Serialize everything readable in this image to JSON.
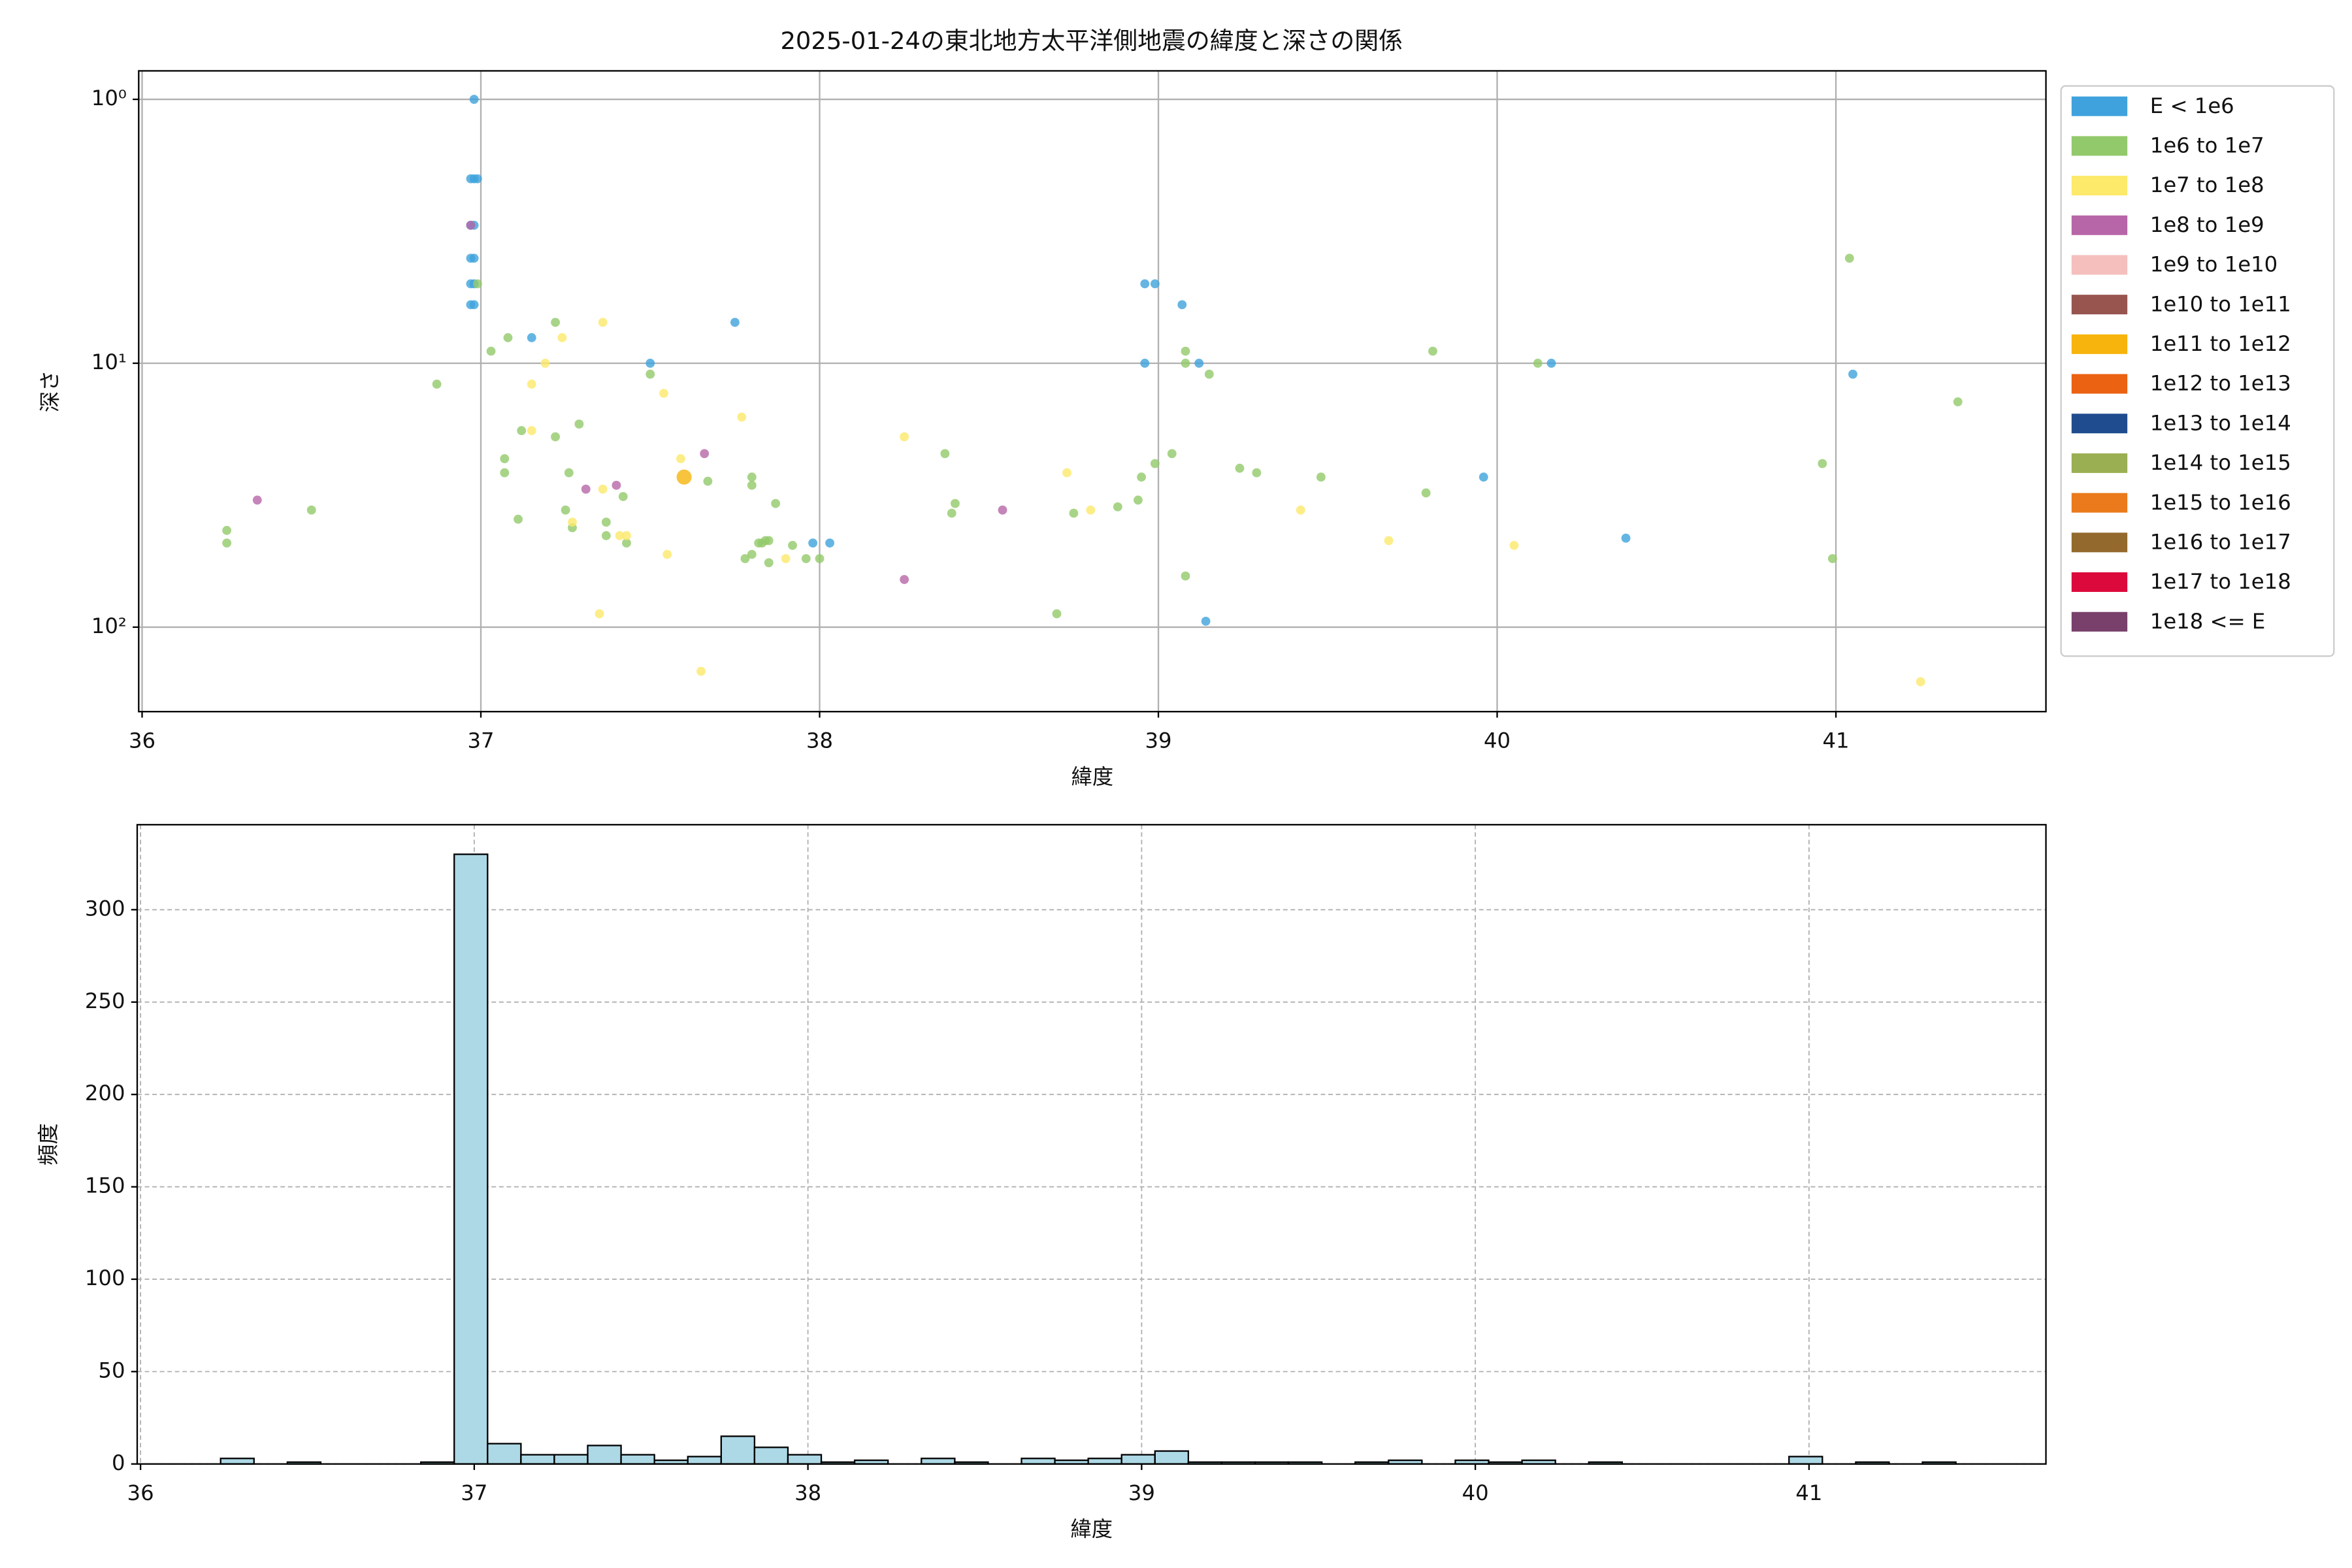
{
  "chart_data": [
    {
      "type": "scatter",
      "title": "2025-01-24の東北地方太平洋側地震の緯度と深さの関係",
      "xlabel": "緯度",
      "ylabel": "深さ",
      "xlim": [
        35.99,
        41.62
      ],
      "xticks": [
        36,
        37,
        38,
        39,
        40,
        41
      ],
      "ylim": [
        209,
        0.78
      ],
      "yscale": "log",
      "yticks": [
        {
          "value": 1,
          "label": "10⁰"
        },
        {
          "value": 10,
          "label": "10¹"
        },
        {
          "value": 100,
          "label": "10²"
        }
      ],
      "grid": true,
      "legend": "outside-upper-right",
      "series": [
        {
          "name": "E < 1e6",
          "color": "#3fa2dc",
          "size": 3,
          "x": [
            36.98,
            36.97,
            36.98,
            36.99,
            36.97,
            36.98,
            36.97,
            36.98,
            36.97,
            36.98,
            36.97,
            36.98,
            37.15,
            37.5,
            37.75,
            38.96,
            38.99,
            39.07,
            38.96,
            39.12,
            39.96,
            40.16,
            41.05,
            40.38,
            37.98,
            38.03,
            39.14
          ],
          "y": [
            1,
            2,
            2,
            2,
            3,
            3,
            4,
            4,
            5,
            5,
            6,
            6,
            8,
            10,
            7,
            5,
            5,
            6,
            10,
            10,
            27,
            10,
            11,
            46,
            48,
            48,
            95
          ]
        },
        {
          "name": "1e6 to 1e7",
          "color": "#92c96a",
          "size": 3,
          "x": [
            36.25,
            36.25,
            36.5,
            36.87,
            36.99,
            37.03,
            37.08,
            37.22,
            37.07,
            37.07,
            37.12,
            37.22,
            37.29,
            37.26,
            37.11,
            37.25,
            37.27,
            37.42,
            37.37,
            37.37,
            37.43,
            37.5,
            37.67,
            37.8,
            37.8,
            37.87,
            37.78,
            37.8,
            37.83,
            37.84,
            37.85,
            37.82,
            37.85,
            37.92,
            37.96,
            38,
            38.37,
            38.4,
            38.39,
            38.7,
            38.75,
            38.88,
            38.94,
            38.95,
            38.99,
            39.04,
            39.08,
            39.08,
            39.15,
            39.08,
            39.24,
            39.29,
            39.48,
            39.79,
            39.81,
            40.12,
            40.96,
            40.99,
            41.04,
            41.36
          ],
          "y": [
            43,
            48,
            36,
            12,
            5,
            9,
            8,
            7,
            23,
            26,
            18,
            19,
            17,
            26,
            39,
            36,
            42,
            32,
            40,
            45,
            48,
            11,
            28,
            27,
            29,
            34,
            55,
            53,
            48,
            47,
            47,
            48,
            57,
            49,
            55,
            55,
            22,
            34,
            37,
            89,
            37,
            35,
            33,
            27,
            24,
            22,
            9,
            10,
            11,
            64,
            25,
            26,
            27,
            31,
            9,
            10,
            24,
            55,
            4,
            14
          ]
        },
        {
          "name": "1e7 to 1e8",
          "color": "#fde96a",
          "size": 3,
          "x": [
            37.15,
            37.19,
            37.24,
            37.36,
            37.15,
            37.36,
            37.41,
            37.43,
            37.27,
            37.59,
            37.54,
            37.55,
            37.77,
            37.35,
            37.65,
            37.9,
            38.25,
            38.73,
            38.8,
            39.42,
            39.68,
            40.05,
            41.25
          ],
          "y": [
            12,
            10,
            8,
            7,
            18,
            30,
            45,
            45,
            40,
            23,
            13,
            53,
            16,
            89,
            147,
            55,
            19,
            26,
            36,
            36,
            47,
            49,
            161
          ]
        },
        {
          "name": "1e8 to 1e9",
          "color": "#b766a8",
          "size": 3,
          "x": [
            36.34,
            36.97,
            37.31,
            37.4,
            37.66,
            38.54,
            38.25
          ],
          "y": [
            33,
            3,
            30,
            29,
            22,
            36,
            66
          ]
        },
        {
          "name": "1e9 to 1e10",
          "color": "#f4bfbc",
          "size": 3,
          "x": [],
          "y": []
        },
        {
          "name": "1e10 to 1e11",
          "color": "#98544f",
          "size": 3,
          "x": [],
          "y": []
        },
        {
          "name": "1e11 to 1e12",
          "color": "#f6b40c",
          "size": 5,
          "x": [
            37.6
          ],
          "y": [
            27
          ]
        },
        {
          "name": "1e12 to 1e13",
          "color": "#ea6212",
          "size": 3,
          "x": [],
          "y": []
        },
        {
          "name": "1e13 to 1e14",
          "color": "#1f4c8f",
          "size": 3,
          "x": [],
          "y": []
        },
        {
          "name": "1e14 to 1e15",
          "color": "#9aaf52",
          "size": 3,
          "x": [],
          "y": []
        },
        {
          "name": "1e15 to 1e16",
          "color": "#ea7a1c",
          "size": 3,
          "x": [],
          "y": []
        },
        {
          "name": "1e16 to 1e17",
          "color": "#94692d",
          "size": 3,
          "x": [],
          "y": []
        },
        {
          "name": "1e17 to 1e18",
          "color": "#dc0a3c",
          "size": 3,
          "x": [],
          "y": []
        },
        {
          "name": "1e18 <= E",
          "color": "#78406b",
          "size": 3,
          "x": [],
          "y": []
        }
      ]
    },
    {
      "type": "histogram",
      "xlabel": "緯度",
      "ylabel": "頻度",
      "color": "#add8e6",
      "xlim": [
        35.99,
        41.71
      ],
      "xticks": [
        36,
        37,
        38,
        39,
        40,
        41
      ],
      "ylim": [
        0,
        346
      ],
      "yticks": [
        0,
        50,
        100,
        150,
        200,
        250,
        300
      ],
      "grid": true,
      "bins": [
        36.24,
        36.34,
        36.44,
        36.54,
        36.64,
        36.74,
        36.84,
        36.94,
        37.04,
        37.14,
        37.24,
        37.34,
        37.44,
        37.54,
        37.64,
        37.74,
        37.84,
        37.94,
        38.04,
        38.14,
        38.24,
        38.34,
        38.44,
        38.54,
        38.64,
        38.74,
        38.84,
        38.94,
        39.04,
        39.14,
        39.24,
        39.34,
        39.44,
        39.54,
        39.64,
        39.74,
        39.84,
        39.94,
        40.04,
        40.14,
        40.24,
        40.34,
        40.44,
        40.54,
        40.64,
        40.74,
        40.84,
        40.94,
        41.04,
        41.14,
        41.24,
        41.34,
        41.44
      ],
      "counts": [
        3,
        0,
        1,
        0,
        0,
        0,
        1,
        330,
        11,
        5,
        5,
        10,
        5,
        2,
        4,
        15,
        9,
        5,
        1,
        2,
        0,
        3,
        1,
        0,
        3,
        2,
        3,
        5,
        7,
        1,
        1,
        1,
        1,
        0,
        1,
        2,
        0,
        2,
        1,
        2,
        0,
        1,
        0,
        0,
        0,
        0,
        0,
        4,
        0,
        1,
        0,
        1
      ]
    }
  ]
}
